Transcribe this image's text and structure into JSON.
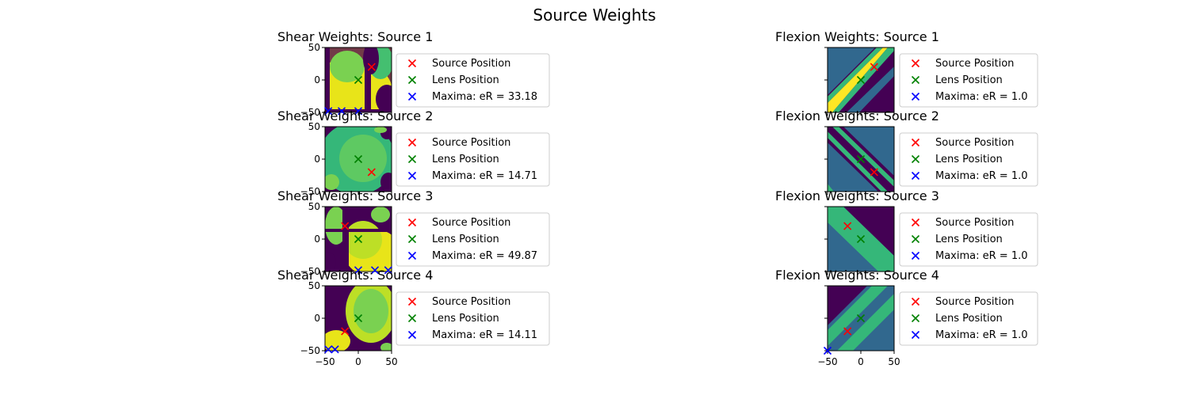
{
  "figure": {
    "title": "Source Weights"
  },
  "colors": {
    "source": "#ff0000",
    "lens": "#008000",
    "maxima": "#0000ff",
    "viridis_dark": "#440154",
    "viridis_mid": "#31688e",
    "viridis_green": "#35b779",
    "viridis_yellow": "#fde725"
  },
  "chart_data": [
    {
      "type": "heatmap",
      "title": "Shear Weights: Source 1",
      "column": "shear",
      "row": 1,
      "xlim": [
        -50,
        50
      ],
      "ylim": [
        -50,
        50
      ],
      "x_ticks": [],
      "y_ticks": [
        "50",
        "0",
        "−50"
      ],
      "source": [
        20,
        20
      ],
      "lens": [
        0,
        0
      ],
      "maxima": [
        [
          -45,
          -48
        ],
        [
          -25,
          -48
        ],
        [
          0,
          -48
        ]
      ],
      "legend": {
        "source": "Source Position",
        "lens": "Lens Position",
        "maxima": "Maxima: eR = 33.18"
      }
    },
    {
      "type": "heatmap",
      "title": "Shear Weights: Source 2",
      "column": "shear",
      "row": 2,
      "xlim": [
        -50,
        50
      ],
      "ylim": [
        -50,
        50
      ],
      "x_ticks": [],
      "y_ticks": [
        "50",
        "0",
        "−50"
      ],
      "source": [
        20,
        -20
      ],
      "lens": [
        0,
        0
      ],
      "maxima": [],
      "legend": {
        "source": "Source Position",
        "lens": "Lens Position",
        "maxima": "Maxima: eR = 14.71"
      }
    },
    {
      "type": "heatmap",
      "title": "Shear Weights: Source 3",
      "column": "shear",
      "row": 3,
      "xlim": [
        -50,
        50
      ],
      "ylim": [
        -50,
        50
      ],
      "x_ticks": [],
      "y_ticks": [
        "50",
        "0",
        "−50"
      ],
      "source": [
        -20,
        20
      ],
      "lens": [
        0,
        0
      ],
      "maxima": [
        [
          0,
          -48
        ],
        [
          25,
          -48
        ],
        [
          45,
          -48
        ]
      ],
      "legend": {
        "source": "Source Position",
        "lens": "Lens Position",
        "maxima": "Maxima: eR = 49.87"
      }
    },
    {
      "type": "heatmap",
      "title": "Shear Weights: Source 4",
      "column": "shear",
      "row": 4,
      "xlim": [
        -50,
        50
      ],
      "ylim": [
        -50,
        50
      ],
      "x_ticks": [
        "−50",
        "0",
        "50"
      ],
      "y_ticks": [
        "50",
        "0",
        "−50"
      ],
      "source": [
        -20,
        -20
      ],
      "lens": [
        0,
        0
      ],
      "maxima": [
        [
          -45,
          -48
        ],
        [
          -35,
          -48
        ]
      ],
      "legend": {
        "source": "Source Position",
        "lens": "Lens Position",
        "maxima": "Maxima: eR = 14.11"
      }
    },
    {
      "type": "heatmap",
      "title": "Flexion Weights: Source 1",
      "column": "flexion",
      "row": 1,
      "xlim": [
        -50,
        50
      ],
      "ylim": [
        -50,
        50
      ],
      "x_ticks": [],
      "y_ticks": [],
      "source": [
        20,
        20
      ],
      "lens": [
        0,
        0
      ],
      "maxima": [],
      "legend": {
        "source": "Source Position",
        "lens": "Lens Position",
        "maxima": "Maxima: eR = 1.0"
      }
    },
    {
      "type": "heatmap",
      "title": "Flexion Weights: Source 2",
      "column": "flexion",
      "row": 2,
      "xlim": [
        -50,
        50
      ],
      "ylim": [
        -50,
        50
      ],
      "x_ticks": [],
      "y_ticks": [],
      "source": [
        20,
        -20
      ],
      "lens": [
        0,
        0
      ],
      "maxima": [],
      "legend": {
        "source": "Source Position",
        "lens": "Lens Position",
        "maxima": "Maxima: eR = 1.0"
      }
    },
    {
      "type": "heatmap",
      "title": "Flexion Weights: Source 3",
      "column": "flexion",
      "row": 3,
      "xlim": [
        -50,
        50
      ],
      "ylim": [
        -50,
        50
      ],
      "x_ticks": [],
      "y_ticks": [],
      "source": [
        -20,
        20
      ],
      "lens": [
        0,
        0
      ],
      "maxima": [],
      "legend": {
        "source": "Source Position",
        "lens": "Lens Position",
        "maxima": "Maxima: eR = 1.0"
      }
    },
    {
      "type": "heatmap",
      "title": "Flexion Weights: Source 4",
      "column": "flexion",
      "row": 4,
      "xlim": [
        -50,
        50
      ],
      "ylim": [
        -50,
        50
      ],
      "x_ticks": [
        "−50",
        "0",
        "50"
      ],
      "y_ticks": [],
      "source": [
        -20,
        -20
      ],
      "lens": [
        0,
        0
      ],
      "maxima": [
        [
          -50,
          -50
        ]
      ],
      "legend": {
        "source": "Source Position",
        "lens": "Lens Position",
        "maxima": "Maxima: eR = 1.0"
      }
    }
  ]
}
